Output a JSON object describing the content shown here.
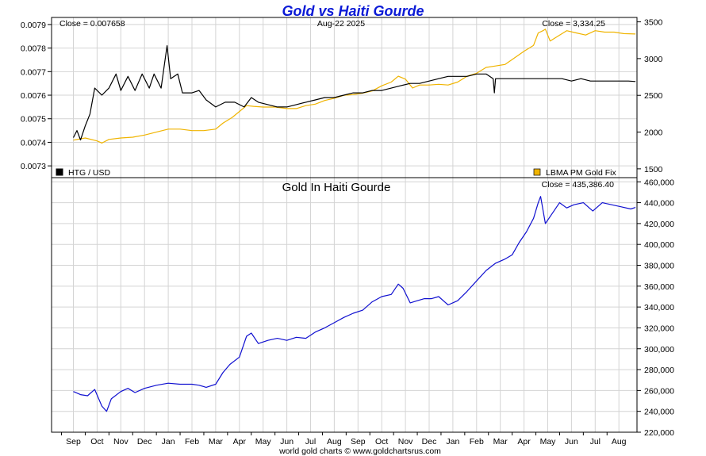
{
  "title": "Gold vs Haiti Gourde",
  "footer": "world gold charts © www.goldchartsrus.com",
  "colors": {
    "title": "#0b1ad6",
    "htg_series": "#000000",
    "gold_fix_series": "#f0b400",
    "gold_htg_series": "#1010d0",
    "grid": "#d4d4d4",
    "axis": "#000000"
  },
  "chart_data": [
    {
      "type": "line",
      "title": "",
      "date_label": "Aug-22  2025",
      "close_left": "Close = 0.007658",
      "close_right": "Close = 3,334.25",
      "legend_placement": "bottom",
      "grid": true,
      "x_ticks": [
        "Sep",
        "Oct",
        "Nov",
        "Dec",
        "Jan",
        "Feb",
        "Mar",
        "Apr",
        "May",
        "Jun",
        "Jul",
        "Aug",
        "Sep",
        "Oct",
        "Nov",
        "Dec",
        "Jan",
        "Feb",
        "Mar",
        "Apr",
        "May",
        "Jun",
        "Jul",
        "Aug"
      ],
      "y_left": {
        "min": 0.00725,
        "max": 0.00793,
        "ticks": [
          "0.0073",
          "0.0074",
          "0.0075",
          "0.0076",
          "0.0077",
          "0.0078",
          "0.0079"
        ]
      },
      "y_right": {
        "min": 1380,
        "max": 3560,
        "ticks": [
          "1500",
          "2000",
          "2500",
          "3000",
          "3500"
        ]
      },
      "series": [
        {
          "name": "HTG / USD",
          "axis": "left",
          "points": [
            [
              0,
              0.00742
            ],
            [
              0.15,
              0.00745
            ],
            [
              0.3,
              0.00741
            ],
            [
              0.5,
              0.00747
            ],
            [
              0.7,
              0.00752
            ],
            [
              0.9,
              0.00763
            ],
            [
              1.2,
              0.0076
            ],
            [
              1.5,
              0.00763
            ],
            [
              1.8,
              0.00769
            ],
            [
              2.0,
              0.00762
            ],
            [
              2.3,
              0.00768
            ],
            [
              2.6,
              0.00762
            ],
            [
              2.9,
              0.00769
            ],
            [
              3.2,
              0.00763
            ],
            [
              3.4,
              0.00769
            ],
            [
              3.7,
              0.00763
            ],
            [
              3.95,
              0.00781
            ],
            [
              4.1,
              0.00767
            ],
            [
              4.4,
              0.00769
            ],
            [
              4.6,
              0.00761
            ],
            [
              5.0,
              0.00761
            ],
            [
              5.3,
              0.00762
            ],
            [
              5.6,
              0.00758
            ],
            [
              6.0,
              0.00755
            ],
            [
              6.4,
              0.00757
            ],
            [
              6.8,
              0.00757
            ],
            [
              7.2,
              0.00755
            ],
            [
              7.5,
              0.00759
            ],
            [
              7.8,
              0.00757
            ],
            [
              8.2,
              0.00756
            ],
            [
              8.6,
              0.00755
            ],
            [
              9.0,
              0.00755
            ],
            [
              9.4,
              0.00756
            ],
            [
              9.8,
              0.00757
            ],
            [
              10.2,
              0.00758
            ],
            [
              10.6,
              0.00759
            ],
            [
              11.0,
              0.00759
            ],
            [
              11.4,
              0.0076
            ],
            [
              11.8,
              0.00761
            ],
            [
              12.2,
              0.00761
            ],
            [
              12.6,
              0.00762
            ],
            [
              13.0,
              0.00762
            ],
            [
              13.4,
              0.00763
            ],
            [
              13.8,
              0.00764
            ],
            [
              14.2,
              0.00765
            ],
            [
              14.6,
              0.00765
            ],
            [
              15.0,
              0.00766
            ],
            [
              15.4,
              0.00767
            ],
            [
              15.8,
              0.00768
            ],
            [
              16.2,
              0.00768
            ],
            [
              16.6,
              0.00768
            ],
            [
              17.0,
              0.00769
            ],
            [
              17.4,
              0.00769
            ],
            [
              17.7,
              0.00767
            ],
            [
              17.75,
              0.00761
            ],
            [
              17.8,
              0.00767
            ],
            [
              18.2,
              0.00767
            ],
            [
              18.6,
              0.00767
            ],
            [
              19.0,
              0.00767
            ],
            [
              19.4,
              0.00767
            ],
            [
              19.8,
              0.00767
            ],
            [
              20.2,
              0.00767
            ],
            [
              20.6,
              0.00767
            ],
            [
              21.0,
              0.00766
            ],
            [
              21.4,
              0.00767
            ],
            [
              21.8,
              0.00766
            ],
            [
              22.2,
              0.00766
            ],
            [
              22.6,
              0.00766
            ],
            [
              23.0,
              0.00766
            ],
            [
              23.4,
              0.00766
            ],
            [
              23.7,
              0.007658
            ]
          ]
        },
        {
          "name": "LBMA PM Gold Fix",
          "axis": "right",
          "points": [
            [
              0,
              1890
            ],
            [
              0.5,
              1920
            ],
            [
              1.0,
              1880
            ],
            [
              1.2,
              1850
            ],
            [
              1.5,
              1900
            ],
            [
              2.0,
              1920
            ],
            [
              2.5,
              1930
            ],
            [
              3.0,
              1960
            ],
            [
              3.5,
              2000
            ],
            [
              4.0,
              2040
            ],
            [
              4.5,
              2040
            ],
            [
              5.0,
              2020
            ],
            [
              5.5,
              2020
            ],
            [
              6.0,
              2040
            ],
            [
              6.3,
              2120
            ],
            [
              6.7,
              2200
            ],
            [
              7.0,
              2280
            ],
            [
              7.3,
              2360
            ],
            [
              7.6,
              2350
            ],
            [
              8.0,
              2340
            ],
            [
              8.5,
              2340
            ],
            [
              9.0,
              2320
            ],
            [
              9.4,
              2320
            ],
            [
              9.8,
              2360
            ],
            [
              10.2,
              2380
            ],
            [
              10.6,
              2430
            ],
            [
              11.0,
              2460
            ],
            [
              11.4,
              2500
            ],
            [
              11.8,
              2510
            ],
            [
              12.2,
              2530
            ],
            [
              12.6,
              2560
            ],
            [
              13.0,
              2630
            ],
            [
              13.4,
              2680
            ],
            [
              13.7,
              2760
            ],
            [
              14.0,
              2720
            ],
            [
              14.3,
              2600
            ],
            [
              14.6,
              2640
            ],
            [
              15.0,
              2640
            ],
            [
              15.4,
              2650
            ],
            [
              15.8,
              2640
            ],
            [
              16.2,
              2680
            ],
            [
              16.6,
              2760
            ],
            [
              17.0,
              2800
            ],
            [
              17.4,
              2880
            ],
            [
              17.8,
              2900
            ],
            [
              18.2,
              2920
            ],
            [
              18.6,
              3010
            ],
            [
              19.0,
              3100
            ],
            [
              19.4,
              3180
            ],
            [
              19.6,
              3350
            ],
            [
              19.8,
              3380
            ],
            [
              19.9,
              3400
            ],
            [
              20.1,
              3240
            ],
            [
              20.4,
              3300
            ],
            [
              20.8,
              3380
            ],
            [
              21.2,
              3350
            ],
            [
              21.6,
              3320
            ],
            [
              22.0,
              3380
            ],
            [
              22.4,
              3360
            ],
            [
              22.8,
              3360
            ],
            [
              23.2,
              3340
            ],
            [
              23.7,
              3334.25
            ]
          ]
        }
      ]
    },
    {
      "type": "line",
      "title": "Gold In Haiti Gourde",
      "close_right": "Close = 435,386.40",
      "grid": true,
      "y_right": {
        "min": 220000,
        "max": 464000,
        "ticks": [
          "220,000",
          "240,000",
          "260,000",
          "280,000",
          "300,000",
          "320,000",
          "340,000",
          "360,000",
          "380,000",
          "400,000",
          "420,000",
          "440,000",
          "460,000"
        ]
      },
      "series": [
        {
          "name": "",
          "points": [
            [
              0,
              259000
            ],
            [
              0.3,
              256000
            ],
            [
              0.6,
              255000
            ],
            [
              0.9,
              261000
            ],
            [
              1.2,
              245000
            ],
            [
              1.4,
              240000
            ],
            [
              1.6,
              252000
            ],
            [
              2.0,
              259000
            ],
            [
              2.3,
              262000
            ],
            [
              2.6,
              258000
            ],
            [
              3.0,
              262000
            ],
            [
              3.5,
              265000
            ],
            [
              4.0,
              267000
            ],
            [
              4.5,
              266000
            ],
            [
              5.0,
              266000
            ],
            [
              5.3,
              265000
            ],
            [
              5.6,
              263000
            ],
            [
              6.0,
              266000
            ],
            [
              6.3,
              277000
            ],
            [
              6.6,
              285000
            ],
            [
              7.0,
              292000
            ],
            [
              7.3,
              312000
            ],
            [
              7.5,
              315000
            ],
            [
              7.8,
              305000
            ],
            [
              8.2,
              308000
            ],
            [
              8.6,
              310000
            ],
            [
              9.0,
              308000
            ],
            [
              9.4,
              311000
            ],
            [
              9.8,
              310000
            ],
            [
              10.2,
              316000
            ],
            [
              10.6,
              320000
            ],
            [
              11.0,
              325000
            ],
            [
              11.4,
              330000
            ],
            [
              11.8,
              334000
            ],
            [
              12.2,
              337000
            ],
            [
              12.6,
              345000
            ],
            [
              13.0,
              350000
            ],
            [
              13.4,
              352000
            ],
            [
              13.7,
              362000
            ],
            [
              13.9,
              358000
            ],
            [
              14.2,
              344000
            ],
            [
              14.5,
              346000
            ],
            [
              14.8,
              348000
            ],
            [
              15.1,
              348000
            ],
            [
              15.4,
              350000
            ],
            [
              15.8,
              342000
            ],
            [
              16.2,
              346000
            ],
            [
              16.6,
              355000
            ],
            [
              17.0,
              365000
            ],
            [
              17.4,
              375000
            ],
            [
              17.8,
              382000
            ],
            [
              18.2,
              386000
            ],
            [
              18.5,
              390000
            ],
            [
              18.8,
              402000
            ],
            [
              19.1,
              412000
            ],
            [
              19.4,
              425000
            ],
            [
              19.6,
              440000
            ],
            [
              19.7,
              446000
            ],
            [
              19.9,
              420000
            ],
            [
              20.2,
              430000
            ],
            [
              20.5,
              440000
            ],
            [
              20.8,
              435000
            ],
            [
              21.1,
              438000
            ],
            [
              21.5,
              440000
            ],
            [
              21.9,
              432000
            ],
            [
              22.3,
              440000
            ],
            [
              22.7,
              438000
            ],
            [
              23.1,
              436000
            ],
            [
              23.5,
              434000
            ],
            [
              23.7,
              435386.4
            ]
          ]
        }
      ]
    }
  ]
}
